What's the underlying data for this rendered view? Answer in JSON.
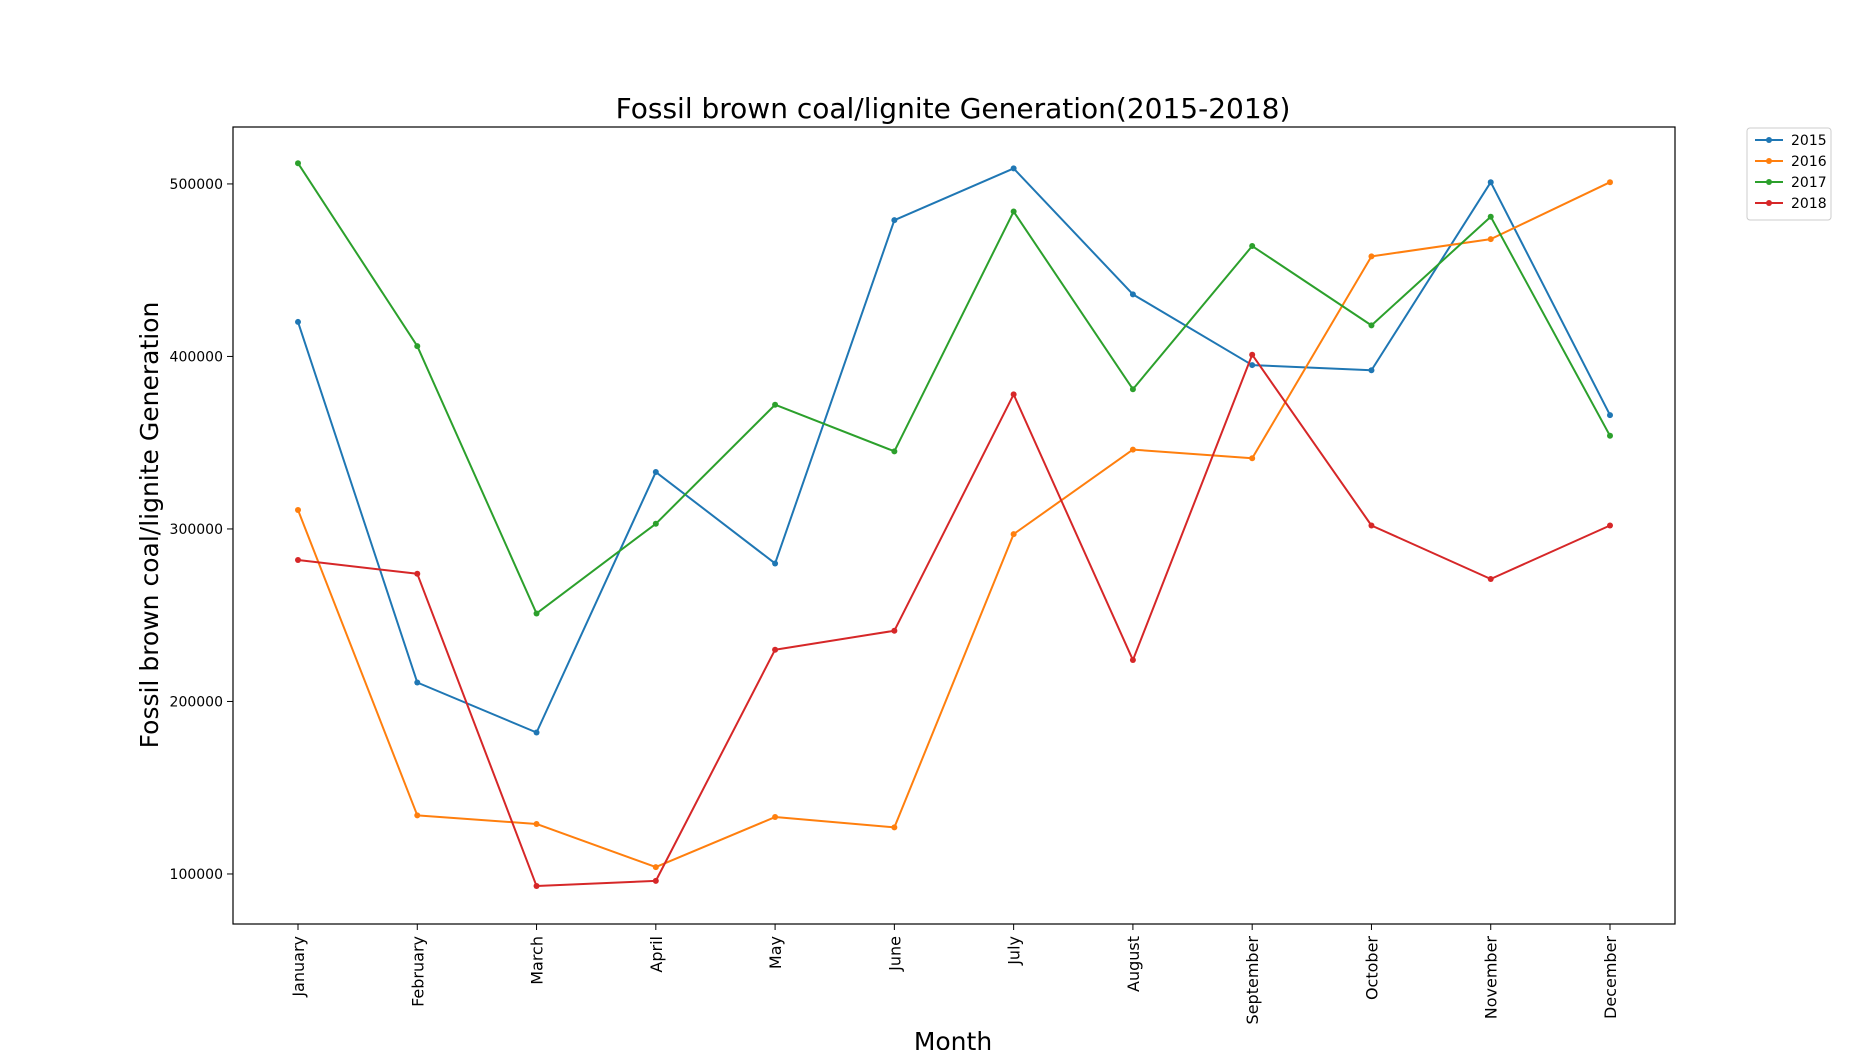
{
  "chart_data": {
    "type": "line",
    "title": "Fossil brown coal/lignite Generation(2015-2018)",
    "xlabel": "Month",
    "ylabel": "Fossil brown coal/lignite Generation",
    "categories": [
      "January",
      "February",
      "March",
      "April",
      "May",
      "June",
      "July",
      "August",
      "September",
      "October",
      "November",
      "December"
    ],
    "y_ticks": [
      100000,
      200000,
      300000,
      400000,
      500000
    ],
    "y_tick_labels": [
      "100000",
      "200000",
      "300000",
      "400000",
      "500000"
    ],
    "ylim": [
      71000,
      533000
    ],
    "grid": false,
    "legend_position": "outside-top-right",
    "series": [
      {
        "name": "2015",
        "color": "#1f77b4",
        "values": [
          420000,
          211000,
          182000,
          333000,
          280000,
          479000,
          509000,
          436000,
          395000,
          392000,
          501000,
          366000
        ]
      },
      {
        "name": "2016",
        "color": "#ff7f0e",
        "values": [
          311000,
          134000,
          129000,
          104000,
          133000,
          127000,
          297000,
          346000,
          341000,
          458000,
          468000,
          501000
        ]
      },
      {
        "name": "2017",
        "color": "#2ca02c",
        "values": [
          512000,
          406000,
          251000,
          303000,
          372000,
          345000,
          484000,
          381000,
          464000,
          418000,
          481000,
          354000
        ]
      },
      {
        "name": "2018",
        "color": "#d62728",
        "values": [
          282000,
          274000,
          93000,
          96000,
          230000,
          241000,
          378000,
          224000,
          401000,
          302000,
          271000,
          302000
        ]
      }
    ]
  }
}
